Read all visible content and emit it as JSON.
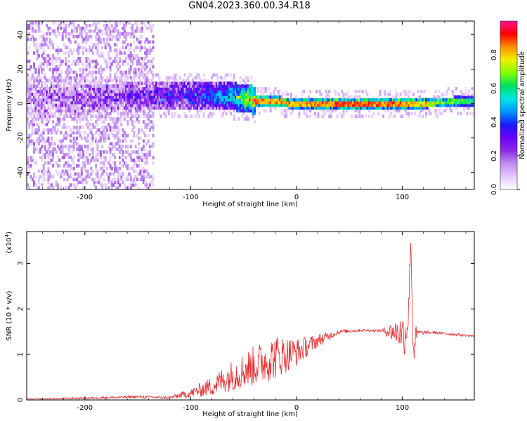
{
  "title": "GN04.2023.360.00.34.R18",
  "chart_data": [
    {
      "type": "heatmap",
      "xlabel": "Height of straight line (km)",
      "ylabel": "Frequency (Hz)",
      "xlim": [
        -255,
        168
      ],
      "ylim": [
        -50,
        48
      ],
      "xticks": [
        -200,
        -100,
        0,
        100
      ],
      "xtick_labels": [
        "-200",
        "-100",
        "0",
        "100"
      ],
      "yticks": [
        -40,
        -20,
        0,
        20,
        40
      ],
      "ytick_labels": [
        "-40",
        "-20",
        "0",
        "20",
        "40"
      ],
      "colorbar": {
        "label": "Normalized spectral amplitude",
        "range": [
          0,
          1
        ],
        "ticks": [
          0.0,
          0.2,
          0.4,
          0.6,
          0.8
        ],
        "tick_labels": [
          "0.0",
          "0.2",
          "0.4",
          "0.6",
          "0.8"
        ],
        "colormap": [
          "#ffffff",
          "#e6c8ff",
          "#c090f0",
          "#8a2be2",
          "#6a00ff",
          "#1a1aff",
          "#0096ff",
          "#00e6e6",
          "#00e060",
          "#80ff00",
          "#f0f000",
          "#ff9000",
          "#ff0000",
          "#ff1493"
        ]
      },
      "description_points": [
        {
          "height_km": -240,
          "center_hz": 2,
          "amplitude": 0.15
        },
        {
          "height_km": -200,
          "center_hz": 2,
          "amplitude": 0.2
        },
        {
          "height_km": -160,
          "center_hz": 3,
          "amplitude": 0.25
        },
        {
          "height_km": -100,
          "center_hz": 4,
          "amplitude": 0.35
        },
        {
          "height_km": -60,
          "center_hz": 3,
          "amplitude": 0.55
        },
        {
          "height_km": -40,
          "center_hz": 1,
          "amplitude": 0.85
        },
        {
          "height_km": 0,
          "center_hz": -1,
          "amplitude": 0.8
        },
        {
          "height_km": 50,
          "center_hz": -1,
          "amplitude": 0.9
        },
        {
          "height_km": 100,
          "center_hz": -1,
          "amplitude": 0.85
        },
        {
          "height_km": 160,
          "center_hz": 0,
          "amplitude": 0.6
        }
      ]
    },
    {
      "type": "line",
      "xlabel": "Height of straight line (km)",
      "ylabel": "SNR (10 * v/v)",
      "yscale_label": "(x10",
      "yscale_exp": "4",
      "yscale_close": ")",
      "xlim": [
        -255,
        168
      ],
      "ylim": [
        0,
        3.7
      ],
      "xticks": [
        -200,
        -100,
        0,
        100
      ],
      "xtick_labels": [
        "-200",
        "-100",
        "0",
        "100"
      ],
      "yticks": [
        0,
        1,
        2,
        3
      ],
      "ytick_labels": [
        "0",
        "1",
        "2",
        "3"
      ],
      "color": "#e8282a",
      "series": [
        {
          "name": "SNR",
          "x": [
            -255,
            -200,
            -150,
            -120,
            -100,
            -80,
            -60,
            -40,
            -20,
            0,
            20,
            40,
            60,
            80,
            95,
            103,
            106,
            108,
            110,
            115,
            130,
            150,
            168
          ],
          "y": [
            0.02,
            0.04,
            0.07,
            0.05,
            0.15,
            0.3,
            0.55,
            0.75,
            0.95,
            1.05,
            1.3,
            1.5,
            1.53,
            1.52,
            1.5,
            1.45,
            2.0,
            3.6,
            1.2,
            1.48,
            1.48,
            1.44,
            1.4
          ],
          "spread": [
            0.01,
            0.02,
            0.03,
            0.03,
            0.1,
            0.22,
            0.35,
            0.45,
            0.5,
            0.3,
            0.15,
            0.05,
            0.03,
            0.03,
            0.3,
            0.5,
            0.6,
            0.0,
            0.6,
            0.05,
            0.03,
            0.03,
            0.02
          ]
        }
      ]
    }
  ]
}
